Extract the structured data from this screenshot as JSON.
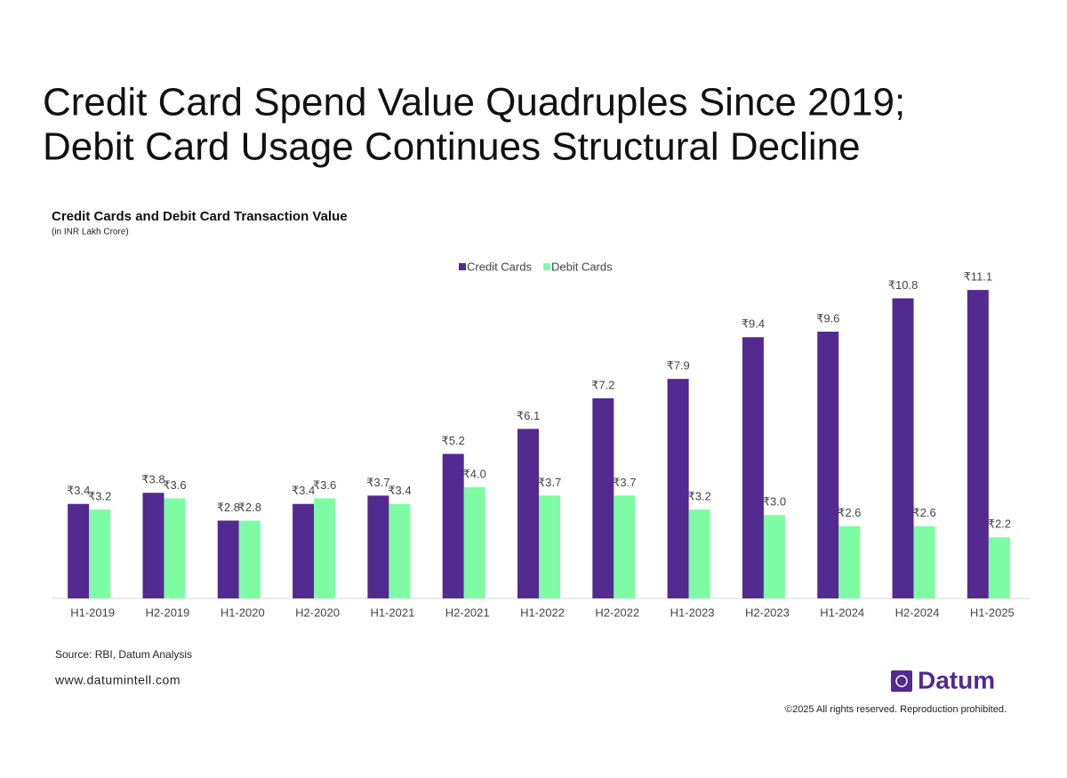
{
  "chart_data": {
    "type": "bar",
    "title": [
      "Credit Card Spend Value Quadruples Since 2019;",
      "Debit Card Usage Continues Structural Decline"
    ],
    "subtitle": "Credit Cards and Debit Card Transaction Value",
    "unit_note": "(in INR Lakh Crore)",
    "categories": [
      "H1-2019",
      "H2-2019",
      "H1-2020",
      "H2-2020",
      "H1-2021",
      "H2-2021",
      "H1-2022",
      "H2-2022",
      "H1-2023",
      "H2-2023",
      "H1-2024",
      "H2-2024",
      "H1-2025"
    ],
    "series": [
      {
        "name": "Credit Cards",
        "color": "#532a8f",
        "values": [
          3.4,
          3.8,
          2.8,
          3.4,
          3.7,
          5.2,
          6.1,
          7.2,
          7.9,
          9.4,
          9.6,
          10.8,
          11.1
        ],
        "value_labels": [
          "₹3.4",
          "₹3.8",
          "₹2.8",
          "₹3.4",
          "₹3.7",
          "₹5.2",
          "₹6.1",
          "₹7.2",
          "₹7.9",
          "₹9.4",
          "₹9.6",
          "₹10.8",
          "₹11.1"
        ]
      },
      {
        "name": "Debit Cards",
        "color": "#7dfca3",
        "values": [
          3.2,
          3.6,
          2.8,
          3.6,
          3.4,
          4.0,
          3.7,
          3.7,
          3.2,
          3.0,
          2.6,
          2.6,
          2.2
        ],
        "value_labels": [
          "₹3.2",
          "₹3.6",
          "₹2.8",
          "₹3.6",
          "₹3.4",
          "₹4.0",
          "₹3.7",
          "₹3.7",
          "₹3.2",
          "₹3.0",
          "₹2.6",
          "₹2.6",
          "₹2.2"
        ]
      }
    ],
    "ylim": [
      0,
      12
    ],
    "legend": "top"
  },
  "source": "Source: RBI, Datum Analysis",
  "website": "www.datumintell.com",
  "brand": "Datum",
  "copyright": "©2025 All rights reserved. Reproduction prohibited."
}
